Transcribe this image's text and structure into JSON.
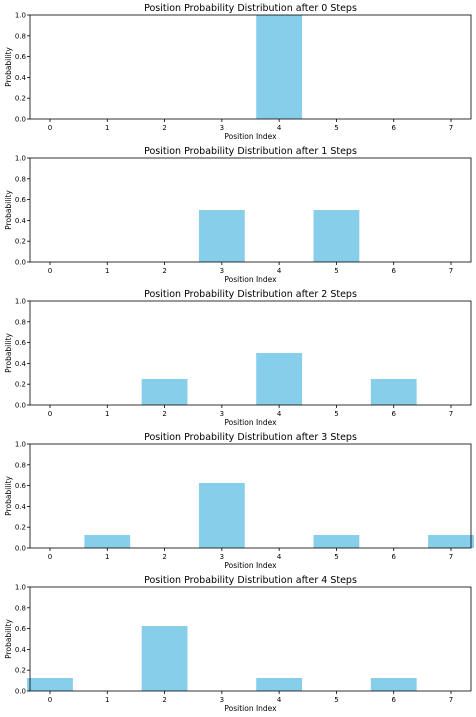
{
  "figure": {
    "bar_color": "#87CEEB"
  },
  "chart_data": [
    {
      "type": "bar",
      "title": "Position Probability Distribution after 0 Steps",
      "xlabel": "Position Index",
      "ylabel": "Probability",
      "categories": [
        "0",
        "1",
        "2",
        "3",
        "4",
        "5",
        "6",
        "7"
      ],
      "values": [
        0,
        0,
        0,
        0,
        1.0,
        0,
        0,
        0
      ],
      "ylim": [
        0,
        1.0
      ],
      "yticks": [
        "0.0",
        "0.2",
        "0.4",
        "0.6",
        "0.8",
        "1.0"
      ],
      "grid": false
    },
    {
      "type": "bar",
      "title": "Position Probability Distribution after 1 Steps",
      "xlabel": "Position Index",
      "ylabel": "Probability",
      "categories": [
        "0",
        "1",
        "2",
        "3",
        "4",
        "5",
        "6",
        "7"
      ],
      "values": [
        0,
        0,
        0,
        0.5,
        0,
        0.5,
        0,
        0
      ],
      "ylim": [
        0,
        1.0
      ],
      "yticks": [
        "0.0",
        "0.2",
        "0.4",
        "0.6",
        "0.8",
        "1.0"
      ],
      "grid": false
    },
    {
      "type": "bar",
      "title": "Position Probability Distribution after 2 Steps",
      "xlabel": "Position Index",
      "ylabel": "Probability",
      "categories": [
        "0",
        "1",
        "2",
        "3",
        "4",
        "5",
        "6",
        "7"
      ],
      "values": [
        0,
        0,
        0.25,
        0,
        0.5,
        0,
        0.25,
        0
      ],
      "ylim": [
        0,
        1.0
      ],
      "yticks": [
        "0.0",
        "0.2",
        "0.4",
        "0.6",
        "0.8",
        "1.0"
      ],
      "grid": false
    },
    {
      "type": "bar",
      "title": "Position Probability Distribution after 3 Steps",
      "xlabel": "Position Index",
      "ylabel": "Probability",
      "categories": [
        "0",
        "1",
        "2",
        "3",
        "4",
        "5",
        "6",
        "7"
      ],
      "values": [
        0,
        0.125,
        0,
        0.625,
        0,
        0.125,
        0,
        0.125
      ],
      "ylim": [
        0,
        1.0
      ],
      "yticks": [
        "0.0",
        "0.2",
        "0.4",
        "0.6",
        "0.8",
        "1.0"
      ],
      "grid": false
    },
    {
      "type": "bar",
      "title": "Position Probability Distribution after 4 Steps",
      "xlabel": "Position Index",
      "ylabel": "Probability",
      "categories": [
        "0",
        "1",
        "2",
        "3",
        "4",
        "5",
        "6",
        "7"
      ],
      "values": [
        0.125,
        0,
        0.625,
        0,
        0.125,
        0,
        0.125,
        0
      ],
      "ylim": [
        0,
        1.0
      ],
      "yticks": [
        "0.0",
        "0.2",
        "0.4",
        "0.6",
        "0.8",
        "1.0"
      ],
      "grid": false
    }
  ]
}
